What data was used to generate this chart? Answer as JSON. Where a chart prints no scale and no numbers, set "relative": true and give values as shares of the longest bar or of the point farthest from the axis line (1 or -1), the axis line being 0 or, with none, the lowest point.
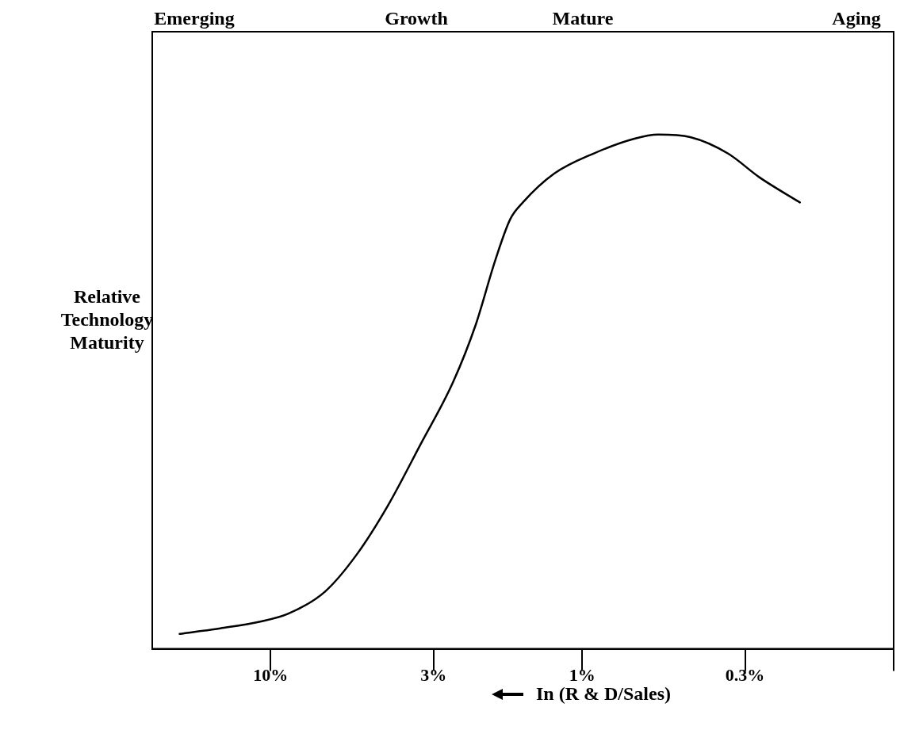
{
  "chart_data": {
    "type": "line",
    "relative": true,
    "log": "x",
    "xlabel": "In (R & D/Sales)",
    "ylabel": "Relative Technology Maturity",
    "annotations": [
      "Emerging",
      "Growth",
      "Mature",
      "Aging"
    ],
    "xlim": [
      24,
      0.1
    ],
    "xticks": [
      {
        "value": 10,
        "label": "10%"
      },
      {
        "value": 3,
        "label": "3%"
      },
      {
        "value": 1,
        "label": "1%"
      },
      {
        "value": 0.3,
        "label": "0.3%"
      },
      {
        "value": 0.1,
        "label": null
      }
    ],
    "grid": false,
    "legend": false,
    "marker": "none",
    "line_style": "solid",
    "series": [
      {
        "color": "#000000",
        "x": [
          19.6,
          14.5,
          10.8,
          8.8,
          6.7,
          5.3,
          4.2,
          3.3,
          2.6,
          2.2,
          1.9,
          1.7,
          1.55,
          1.23,
          0.92,
          0.68,
          0.57,
          0.45,
          0.34,
          0.27,
          0.2
        ],
        "values": [
          0.029,
          0.04,
          0.053,
          0.068,
          0.111,
          0.183,
          0.279,
          0.398,
          0.518,
          0.629,
          0.756,
          0.836,
          0.868,
          0.924,
          0.963,
          0.992,
          1,
          0.995,
          0.963,
          0.917,
          0.868
        ]
      }
    ]
  }
}
